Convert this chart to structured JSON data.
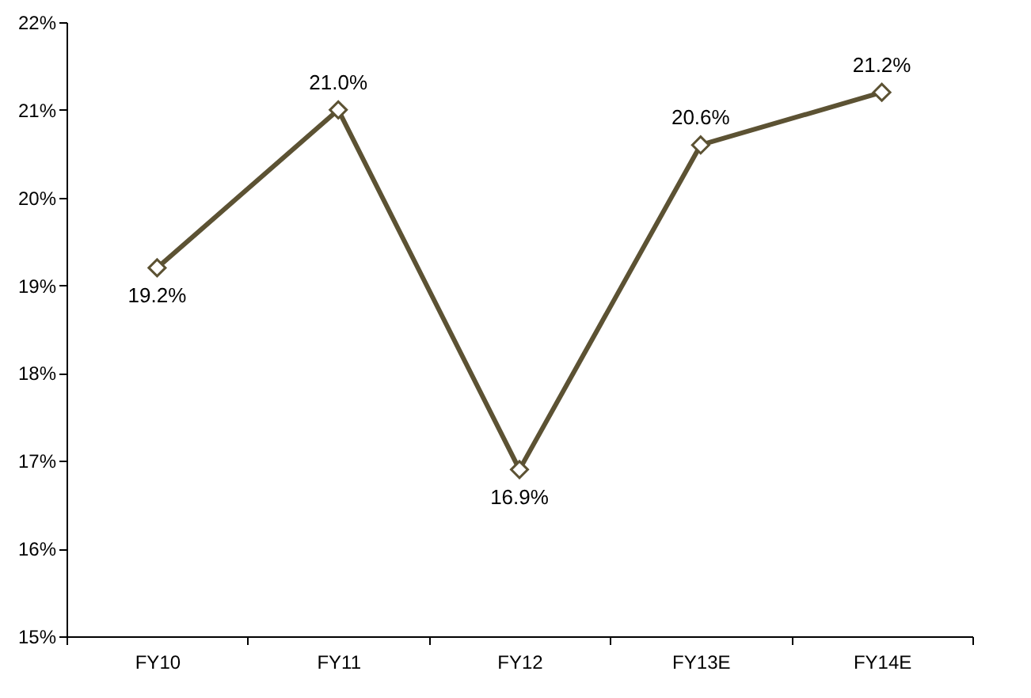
{
  "chart_data": {
    "type": "line",
    "categories": [
      "FY10",
      "FY11",
      "FY12",
      "FY13E",
      "FY14E"
    ],
    "series": [
      {
        "color": "#5c5233",
        "values": [
          19.2,
          21.0,
          16.9,
          20.6,
          21.2
        ]
      }
    ],
    "value_labels": [
      "19.2%",
      "21.0%",
      "16.9%",
      "20.6%",
      "21.2%"
    ],
    "ylim": [
      15,
      22
    ],
    "yticks": [
      {
        "value": 15,
        "label": "15%"
      },
      {
        "value": 16,
        "label": "16%"
      },
      {
        "value": 17,
        "label": "17%"
      },
      {
        "value": 18,
        "label": "18%"
      },
      {
        "value": 19,
        "label": "19%"
      },
      {
        "value": 20,
        "label": "20%"
      },
      {
        "value": 21,
        "label": "21%"
      },
      {
        "value": 22,
        "label": "22%"
      }
    ],
    "grid": false,
    "marker": "diamond",
    "line_style": "solid"
  }
}
